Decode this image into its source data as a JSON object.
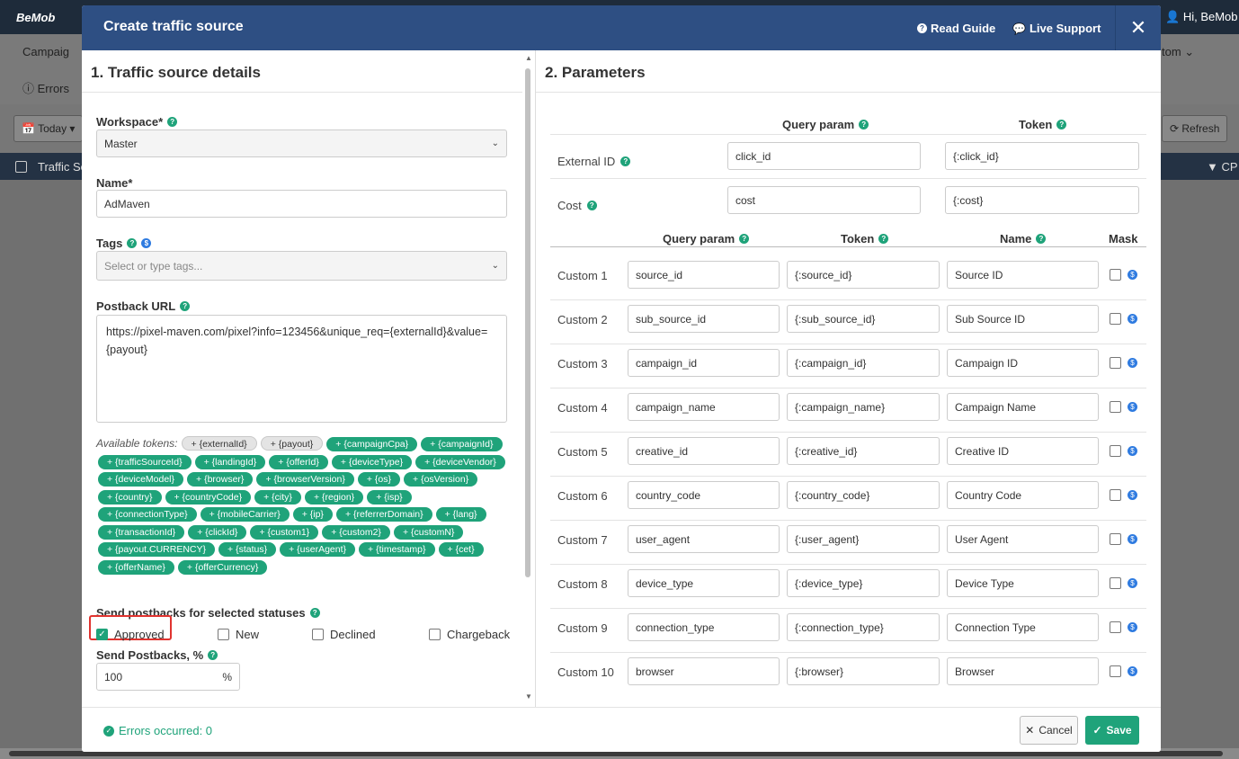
{
  "background": {
    "brand": "BeMob",
    "user": "Hi, BeMob",
    "nav_campaigns": "Campaig",
    "nav_errors": "Errors",
    "nav_right": "tom",
    "date_filter": "Today",
    "refresh": "Refresh",
    "col_traffic": "Traffic So",
    "col_cp": "CP"
  },
  "modal": {
    "title": "Create traffic source",
    "read_guide": "Read Guide",
    "live_support": "Live Support",
    "close": "✕"
  },
  "details": {
    "heading": "1. Traffic source details",
    "workspace_label": "Workspace*",
    "workspace_value": "Master",
    "name_label": "Name*",
    "name_value": "AdMaven",
    "tags_label": "Tags",
    "tags_placeholder": "Select or type tags...",
    "postback_label": "Postback URL",
    "postback_value": "https://pixel-maven.com/pixel?info=123456&unique_req={externalId}&value={payout}",
    "available_tokens": "Available tokens:",
    "tokens_grey": [
      "+ {externalId}",
      "+ {payout}"
    ],
    "tokens": [
      "+ {campaignCpa}",
      "+ {campaignId}",
      "+ {trafficSourceId}",
      "+ {landingId}",
      "+ {offerId}",
      "+ {deviceType}",
      "+ {deviceVendor}",
      "+ {deviceModel}",
      "+ {browser}",
      "+ {browserVersion}",
      "+ {os}",
      "+ {osVersion}",
      "+ {country}",
      "+ {countryCode}",
      "+ {city}",
      "+ {region}",
      "+ {isp}",
      "+ {connectionType}",
      "+ {mobileCarrier}",
      "+ {ip}",
      "+ {referrerDomain}",
      "+ {lang}",
      "+ {transactionId}",
      "+ {clickId}",
      "+ {custom1}",
      "+ {custom2}",
      "+ {customN}",
      "+ {payout.CURRENCY}",
      "+ {status}",
      "+ {userAgent}",
      "+ {timestamp}",
      "+ {cet}",
      "+ {offerName}",
      "+ {offerCurrency}"
    ],
    "statuses_label": "Send postbacks for selected statuses",
    "statuses": [
      {
        "label": "Approved",
        "checked": true
      },
      {
        "label": "New",
        "checked": false
      },
      {
        "label": "Declined",
        "checked": false
      },
      {
        "label": "Chargeback",
        "checked": false
      }
    ],
    "send_pct_label": "Send Postbacks, %",
    "send_pct_value": "100",
    "pct_unit": "%"
  },
  "params": {
    "heading": "2. Parameters",
    "qp_header": "Query param",
    "token_header": "Token",
    "name_header": "Name",
    "mask_header": "Mask",
    "external": {
      "label": "External ID",
      "param": "click_id",
      "token": "{:click_id}"
    },
    "cost": {
      "label": "Cost",
      "param": "cost",
      "token": "{:cost}"
    },
    "customs": [
      {
        "label": "Custom 1",
        "param": "source_id",
        "token": "{:source_id}",
        "name": "Source ID"
      },
      {
        "label": "Custom 2",
        "param": "sub_source_id",
        "token": "{:sub_source_id}",
        "name": "Sub Source ID"
      },
      {
        "label": "Custom 3",
        "param": "campaign_id",
        "token": "{:campaign_id}",
        "name": "Campaign ID"
      },
      {
        "label": "Custom 4",
        "param": "campaign_name",
        "token": "{:campaign_name}",
        "name": "Campaign Name"
      },
      {
        "label": "Custom 5",
        "param": "creative_id",
        "token": "{:creative_id}",
        "name": "Creative ID"
      },
      {
        "label": "Custom 6",
        "param": "country_code",
        "token": "{:country_code}",
        "name": "Country Code"
      },
      {
        "label": "Custom 7",
        "param": "user_agent",
        "token": "{:user_agent}",
        "name": "User Agent"
      },
      {
        "label": "Custom 8",
        "param": "device_type",
        "token": "{:device_type}",
        "name": "Device Type"
      },
      {
        "label": "Custom 9",
        "param": "connection_type",
        "token": "{:connection_type}",
        "name": "Connection Type"
      },
      {
        "label": "Custom 10",
        "param": "browser",
        "token": "{:browser}",
        "name": "Browser"
      }
    ]
  },
  "footer": {
    "errors": "Errors occurred: 0",
    "cancel": "Cancel",
    "save": "Save"
  },
  "colors": {
    "accent": "#1fa37a",
    "header": "#2e4f83",
    "highlight": "#e0332f"
  }
}
